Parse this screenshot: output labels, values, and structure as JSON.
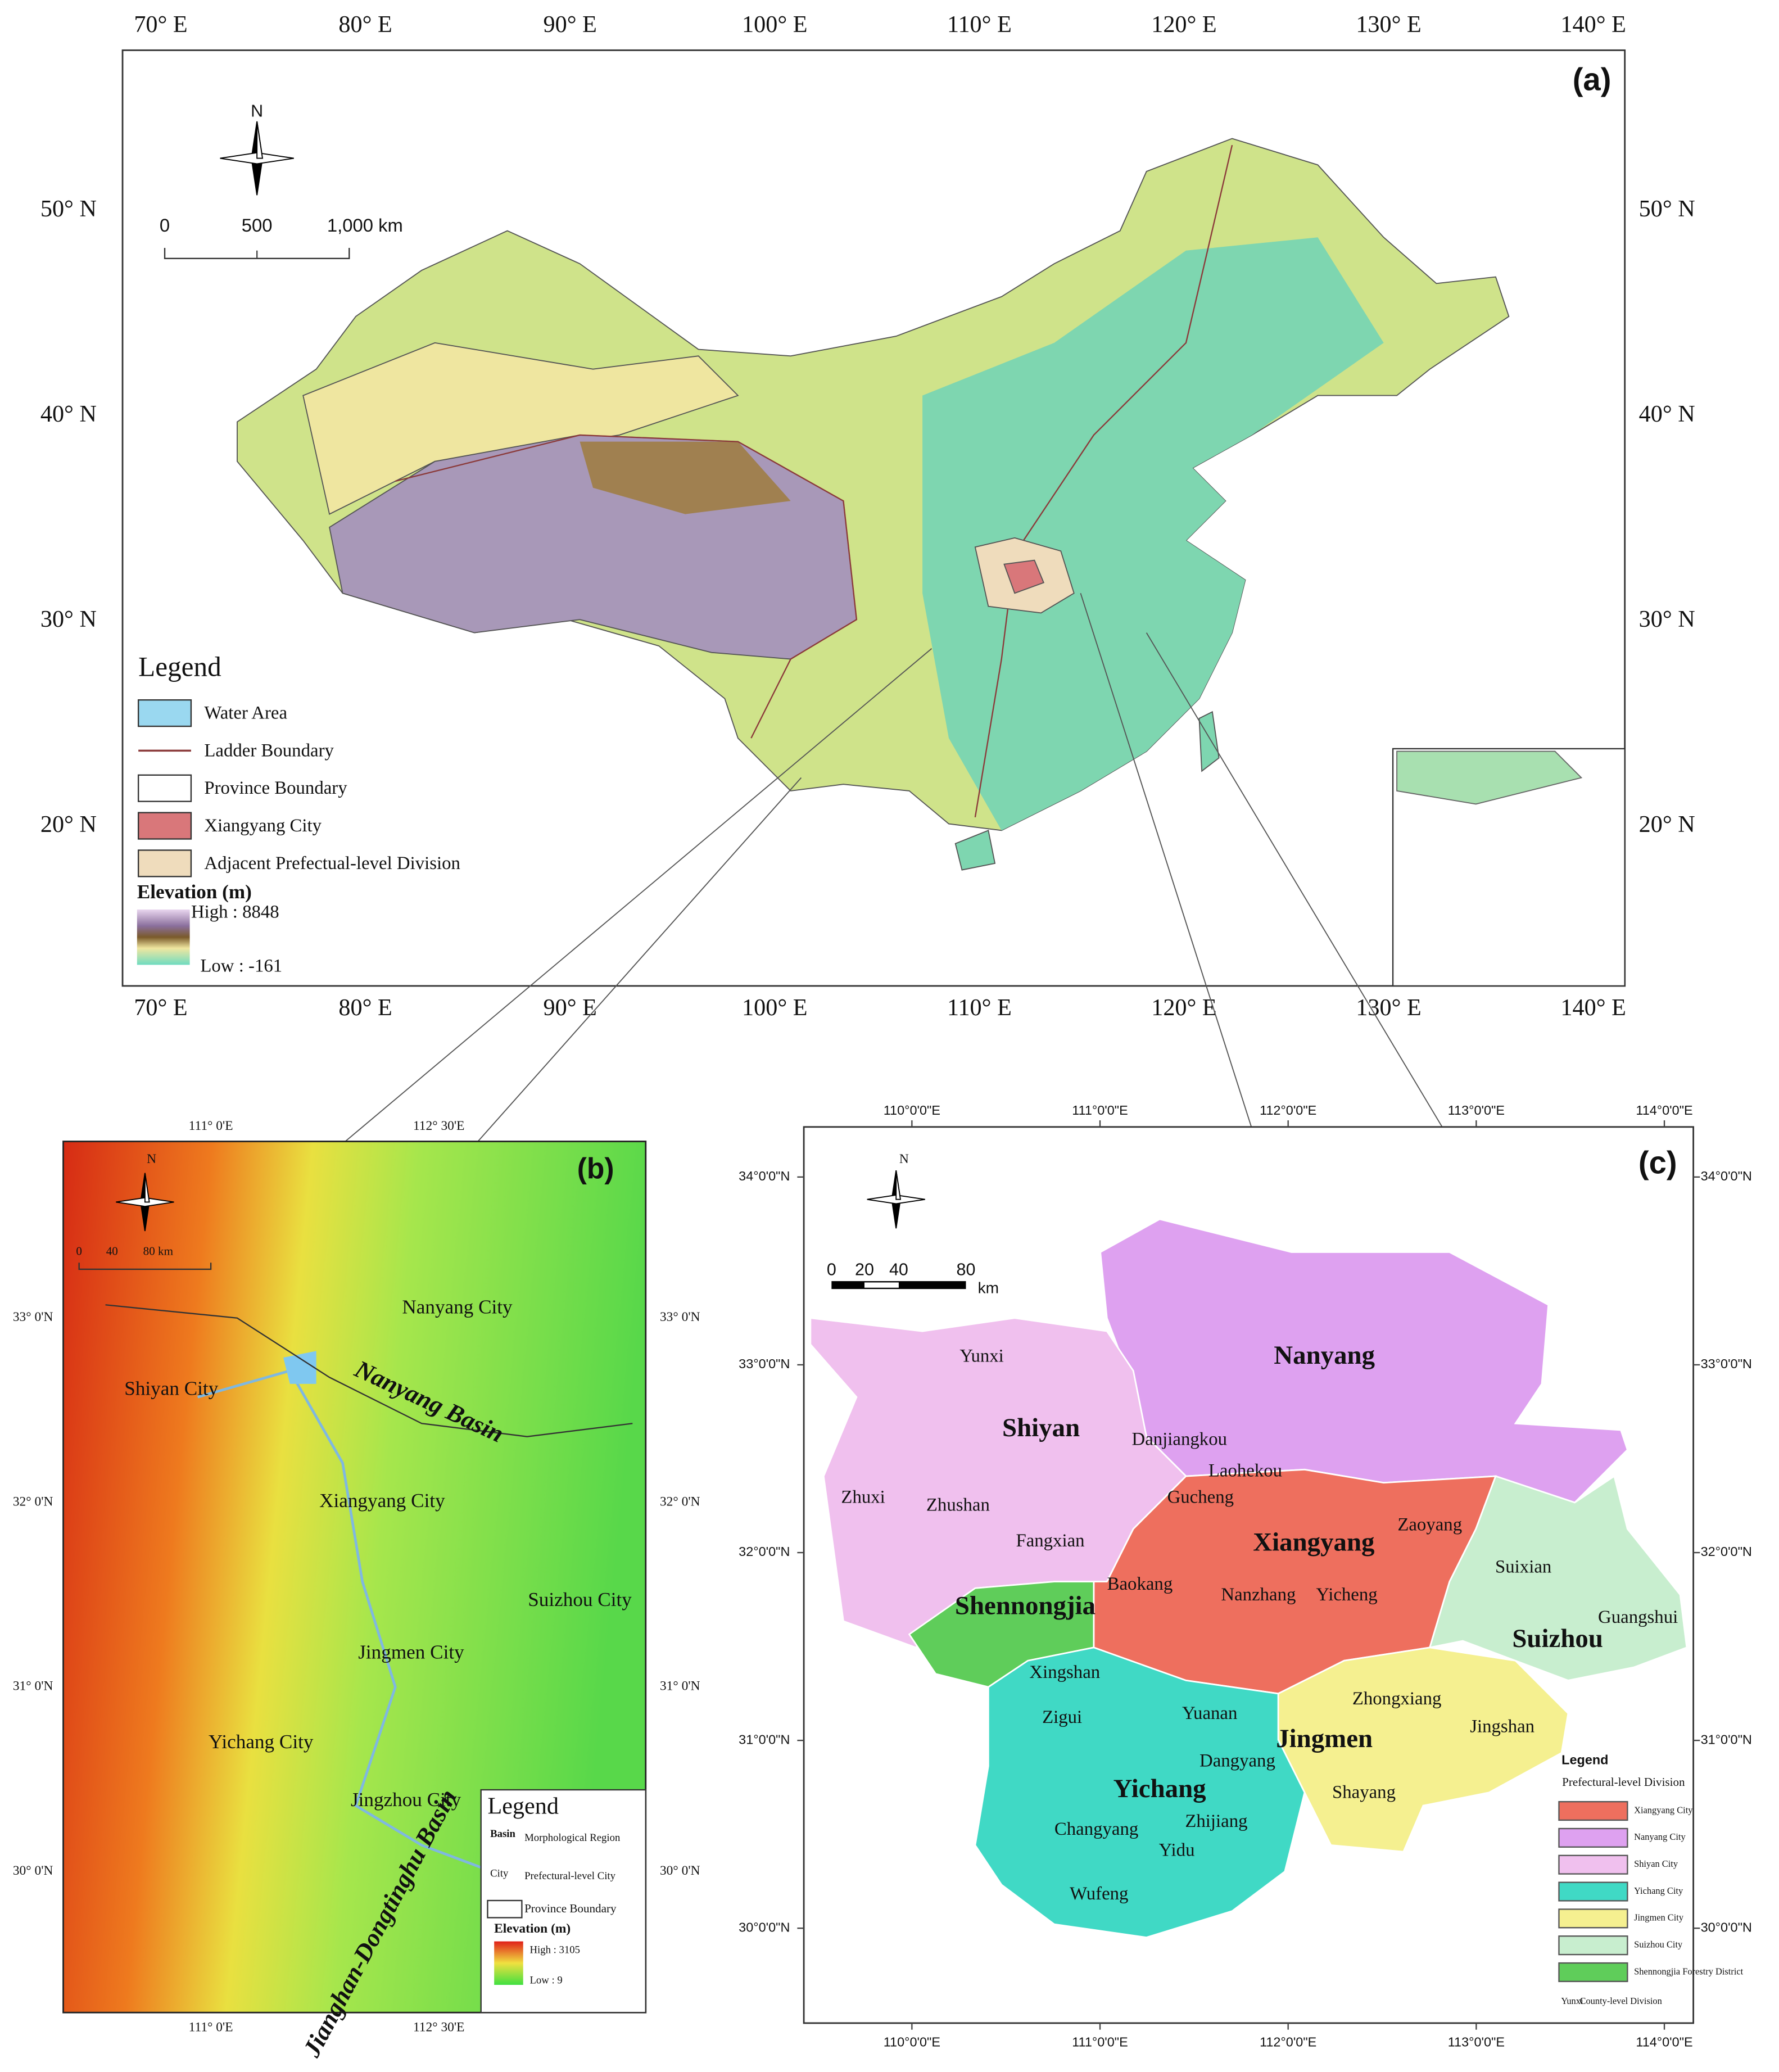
{
  "panel_a": {
    "label": "(a)",
    "lon_ticks": [
      "70° E",
      "80° E",
      "90° E",
      "100° E",
      "110° E",
      "120° E",
      "130° E",
      "140° E"
    ],
    "lat_ticks": [
      "20° N",
      "30° N",
      "40° N",
      "50° N"
    ],
    "north": "N",
    "scale_bar": [
      "0",
      "500",
      "1,000 km"
    ],
    "legend": {
      "title": "Legend",
      "items": [
        {
          "label": "Water Area",
          "color": "#9ad8f0"
        },
        {
          "label": "Ladder Boundary",
          "color": "#8b3a3a",
          "symbol": "line"
        },
        {
          "label": "Province Boundary",
          "color": "#ffffff"
        },
        {
          "label": "Xiangyang City",
          "color": "#d9777a"
        },
        {
          "label": "Adjacent Prefectual-level Division",
          "color": "#efdcbc"
        }
      ],
      "elevation_title": "Elevation (m)",
      "high": "High : 8848",
      "low": "Low : -161"
    }
  },
  "panel_b": {
    "label": "(b)",
    "lon_ticks": [
      "111° 0'E",
      "112° 30'E"
    ],
    "lat_ticks": [
      "33° 0'N",
      "32° 0'N",
      "31° 0'N",
      "30° 0'N"
    ],
    "north": "N",
    "scale_bar": [
      "0",
      "40",
      "80 km"
    ],
    "places": [
      "Nanyang City",
      "Shiyan City",
      "Nanyang Basin",
      "Xiangyang City",
      "Suizhou City",
      "Jingmen City",
      "Yichang City",
      "Jingzhou City",
      "Jianghan-Dongtinghu Basin"
    ],
    "legend": {
      "title": "Legend",
      "items": [
        {
          "symbol": "Basin",
          "label": "Morphological Region"
        },
        {
          "symbol": "City",
          "label": "Prefectural-level City"
        },
        {
          "label": "Province Boundary"
        }
      ],
      "elevation_title": "Elevation (m)",
      "high": "High : 3105",
      "low": "Low : 9"
    }
  },
  "panel_c": {
    "label": "(c)",
    "lon_ticks": [
      "110°0'0\"E",
      "111°0'0\"E",
      "112°0'0\"E",
      "113°0'0\"E",
      "114°0'0\"E"
    ],
    "lat_ticks": [
      "34°0'0\"N",
      "33°0'0\"N",
      "32°0'0\"N",
      "31°0'0\"N",
      "30°0'0\"N"
    ],
    "north": "N",
    "scale_bar": [
      "0",
      "20",
      "40",
      "80",
      "km"
    ],
    "regions": [
      {
        "name": "Nanyang",
        "color": "#dea1f0"
      },
      {
        "name": "Shiyan",
        "color": "#f0c0ee"
      },
      {
        "name": "Xiangyang",
        "color": "#ee6f5e"
      },
      {
        "name": "Shennongjia",
        "color": "#5fcd5a"
      },
      {
        "name": "Suizhou",
        "color": "#c8eecf"
      },
      {
        "name": "Jingmen",
        "color": "#f5f090"
      },
      {
        "name": "Yichang",
        "color": "#40d9c5"
      }
    ],
    "counties": [
      "Yunxi",
      "Danjiangkou",
      "Zhuxi",
      "Zhushan",
      "Fangxian",
      "Laohekou",
      "Gucheng",
      "Zaoyang",
      "Baokang",
      "Nanzhang",
      "Yicheng",
      "Suixian",
      "Guangshui",
      "Xingshan",
      "Yuanan",
      "Zigui",
      "Dangyang",
      "Zhongxiang",
      "Jingshan",
      "Shayang",
      "Changyang",
      "Zhijiang",
      "Yidu",
      "Wufeng"
    ],
    "legend": {
      "title": "Legend",
      "subtitle": "Prefectural-level Division",
      "items": [
        {
          "label": "Xiangyang City",
          "color": "#ee6f5e"
        },
        {
          "label": "Nanyang City",
          "color": "#dea1f0"
        },
        {
          "label": "Shiyan City",
          "color": "#f0c0ee"
        },
        {
          "label": "Yichang City",
          "color": "#40d9c5"
        },
        {
          "label": "Jingmen City",
          "color": "#f5f090"
        },
        {
          "label": "Suizhou City",
          "color": "#c8eecf"
        },
        {
          "label": "Shennongjia Forestry District",
          "color": "#5fcd5a"
        }
      ],
      "county_symbol": "Yunxi",
      "county_label": "County-level Division"
    }
  }
}
